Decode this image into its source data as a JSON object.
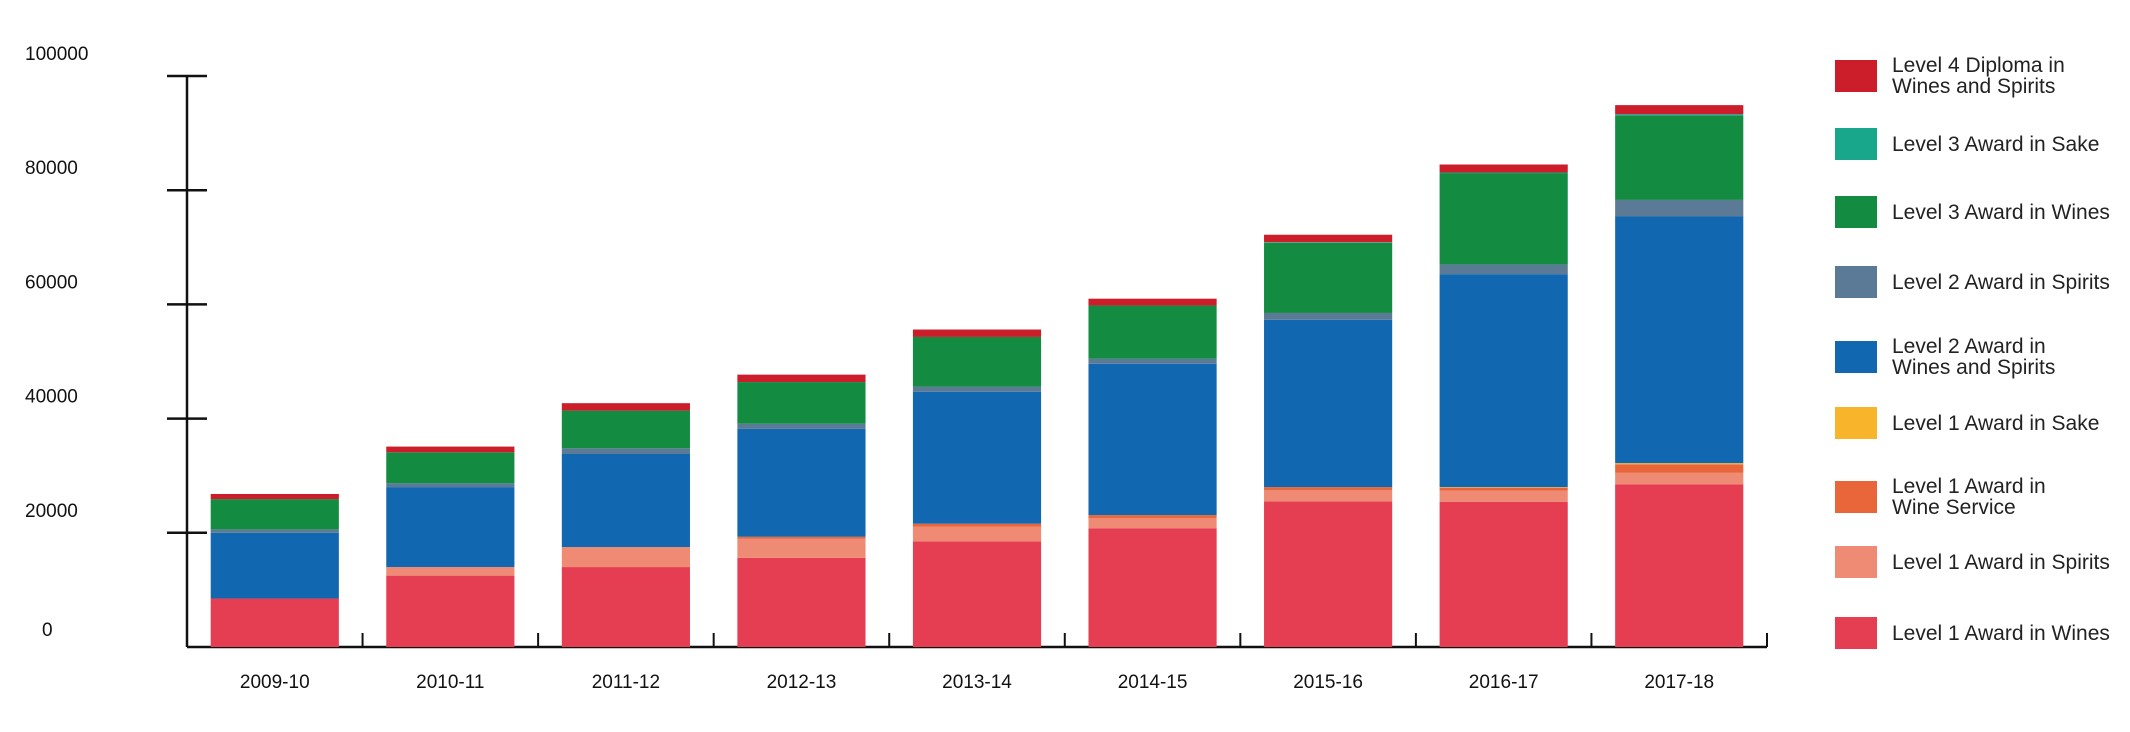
{
  "chart_data": {
    "type": "bar",
    "stacked": true,
    "categories": [
      "2009-10",
      "2010-11",
      "2011-12",
      "2012-13",
      "2013-14",
      "2014-15",
      "2015-16",
      "2016-17",
      "2017-18"
    ],
    "ylim": [
      0,
      100000
    ],
    "yticks": [
      0,
      20000,
      40000,
      60000,
      80000,
      100000
    ],
    "ytick_labels": [
      "0",
      "20000",
      "40000",
      "60000",
      "80000",
      "100000"
    ],
    "grid": false,
    "legend_position": "right",
    "series": [
      {
        "name": "Level 1 Award in Wines",
        "color": "#e53e52",
        "values": [
          8500,
          12500,
          14000,
          15600,
          18500,
          20800,
          25500,
          25400,
          28500
        ]
      },
      {
        "name": "Level 1 Award in Spirits",
        "color": "#ef8b75",
        "values": [
          0,
          1500,
          3500,
          3400,
          2600,
          1800,
          2000,
          2000,
          2000
        ]
      },
      {
        "name": "Level 1 Award in Wine Service",
        "color": "#e8663a",
        "values": [
          0,
          0,
          0,
          300,
          500,
          500,
          500,
          500,
          1500
        ]
      },
      {
        "name": "Level 1 Award in Sake",
        "color": "#f8b52b",
        "values": [
          0,
          0,
          0,
          0,
          0,
          0,
          0,
          100,
          200
        ]
      },
      {
        "name": "Level 2 Award in Wines and Spirits",
        "color": "#1268b0",
        "values": [
          11500,
          14000,
          16300,
          18900,
          23100,
          26500,
          29300,
          37300,
          43200
        ]
      },
      {
        "name": "Level 2 Award in Spirits",
        "color": "#5a7a96",
        "values": [
          600,
          700,
          1000,
          900,
          900,
          900,
          1200,
          1700,
          2900
        ]
      },
      {
        "name": "Level 3 Award in Wines",
        "color": "#138c42",
        "values": [
          5300,
          5400,
          6600,
          7300,
          8700,
          9300,
          12300,
          16000,
          14700
        ]
      },
      {
        "name": "Level 3 Award in Sake",
        "color": "#18a78a",
        "values": [
          0,
          0,
          0,
          0,
          0,
          0,
          100,
          100,
          300
        ]
      },
      {
        "name": "Level 4 Diploma in Wines and Spirits",
        "color": "#cc1d2b",
        "values": [
          900,
          1000,
          1300,
          1300,
          1300,
          1200,
          1300,
          1400,
          1600
        ]
      }
    ]
  },
  "legend": [
    {
      "lines": [
        "Level 4 Diploma in",
        "Wines and Spirits"
      ],
      "color": "#cc1d2b"
    },
    {
      "lines": [
        "Level 3 Award in Sake"
      ],
      "color": "#18a78a"
    },
    {
      "lines": [
        "Level 3 Award in Wines"
      ],
      "color": "#138c42"
    },
    {
      "lines": [
        "Level 2 Award in Spirits"
      ],
      "color": "#5a7a96"
    },
    {
      "lines": [
        "Level 2 Award in",
        "Wines and Spirits"
      ],
      "color": "#1268b0"
    },
    {
      "lines": [
        "Level 1 Award in Sake"
      ],
      "color": "#f8b52b"
    },
    {
      "lines": [
        "Level 1 Award in",
        "Wine Service"
      ],
      "color": "#e8663a"
    },
    {
      "lines": [
        "Level 1 Award in Spirits"
      ],
      "color": "#ef8b75"
    },
    {
      "lines": [
        "Level 1 Award in Wines"
      ],
      "color": "#e53e52"
    }
  ]
}
